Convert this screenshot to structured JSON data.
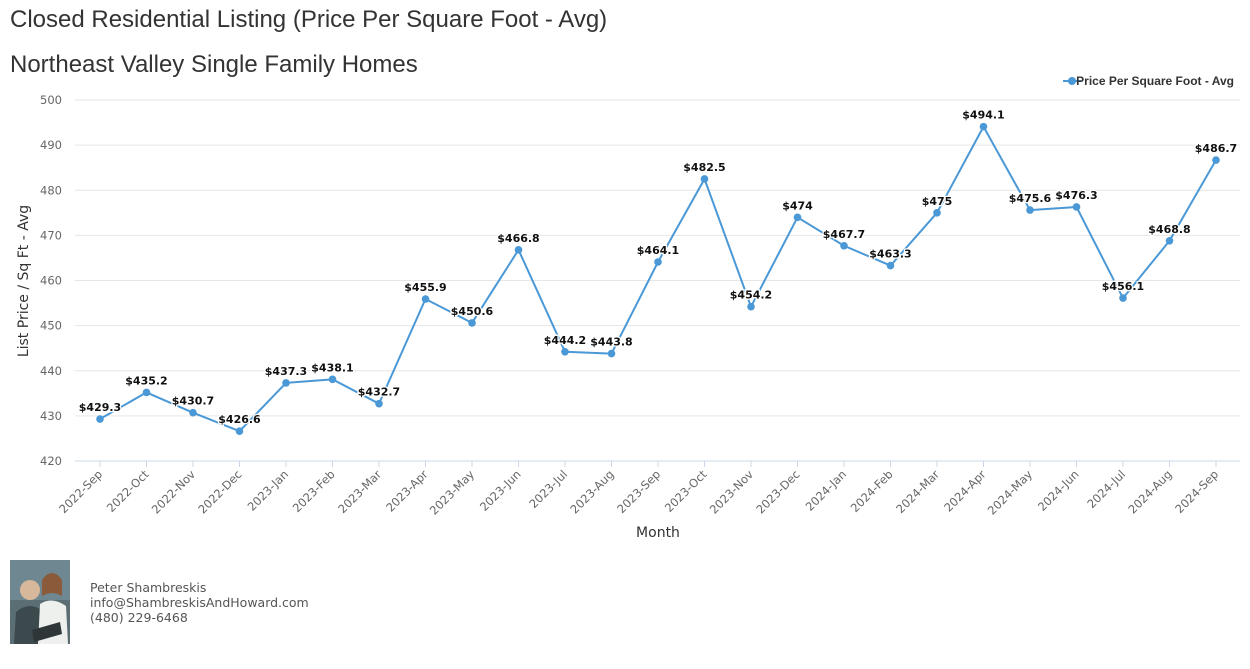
{
  "header": {
    "title": "Closed Residential Listing (Price Per Square Foot - Avg)",
    "subtitle": "Northeast Valley Single Family Homes"
  },
  "agent": {
    "name": "Peter Shambreskis",
    "email": "info@ShambreskisAndHoward.com",
    "phone": "(480) 229-6468"
  },
  "colors": {
    "series": "#4a98d6",
    "grid": "#e6e6e6",
    "axis": "#c8d8e8",
    "tick_text": "#666666",
    "label_text": "#111111"
  },
  "chart_data": {
    "type": "line",
    "title": "Closed Residential Listing (Price Per Square Foot - Avg)",
    "subtitle": "Northeast Valley Single Family Homes",
    "xlabel": "Month",
    "ylabel": "List Price / Sq Ft - Avg",
    "ylim": [
      420,
      500
    ],
    "yticks": [
      420,
      430,
      440,
      450,
      460,
      470,
      480,
      490,
      500
    ],
    "grid": true,
    "legend_position": "top-right",
    "categories": [
      "2022-Sep",
      "2022-Oct",
      "2022-Nov",
      "2022-Dec",
      "2023-Jan",
      "2023-Feb",
      "2023-Mar",
      "2023-Apr",
      "2023-May",
      "2023-Jun",
      "2023-Jul",
      "2023-Aug",
      "2023-Sep",
      "2023-Oct",
      "2023-Nov",
      "2023-Dec",
      "2024-Jan",
      "2024-Feb",
      "2024-Mar",
      "2024-Apr",
      "2024-May",
      "2024-Jun",
      "2024-Jul",
      "2024-Aug",
      "2024-Sep"
    ],
    "series": [
      {
        "name": "Price Per Square Foot - Avg",
        "values": [
          429.3,
          435.2,
          430.7,
          426.6,
          437.3,
          438.1,
          432.7,
          455.9,
          450.6,
          466.8,
          444.2,
          443.8,
          464.1,
          482.5,
          454.2,
          474,
          467.7,
          463.3,
          475,
          494.1,
          475.6,
          476.3,
          456.1,
          468.8,
          486.7
        ],
        "labels": [
          "$429.3",
          "$435.2",
          "$430.7",
          "$426.6",
          "$437.3",
          "$438.1",
          "$432.7",
          "$455.9",
          "$450.6",
          "$466.8",
          "$444.2",
          "$443.8",
          "$464.1",
          "$482.5",
          "$454.2",
          "$474",
          "$467.7",
          "$463.3",
          "$475",
          "$494.1",
          "$475.6",
          "$476.3",
          "$456.1",
          "$468.8",
          "$486.7"
        ]
      }
    ]
  }
}
